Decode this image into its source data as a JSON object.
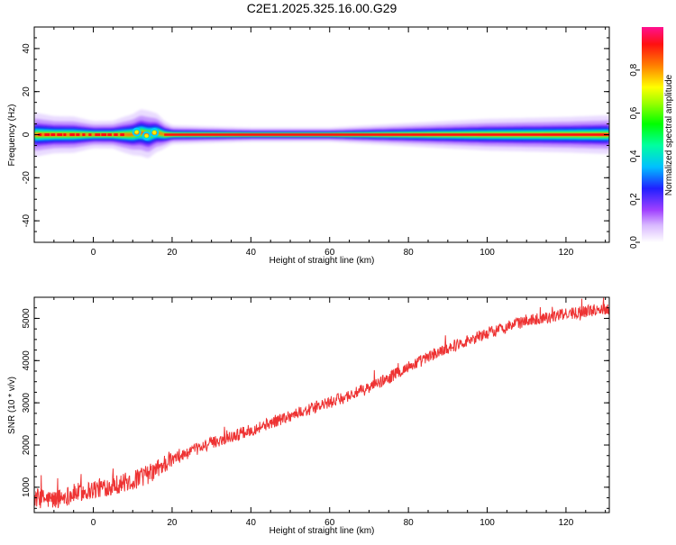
{
  "title": "C2E1.2025.325.16.00.G29",
  "chart_data": [
    {
      "type": "heatmap",
      "xlabel": "Height of straight line (km)",
      "ylabel": "Frequency (Hz)",
      "xlim": [
        -15,
        131
      ],
      "ylim": [
        -50,
        50
      ],
      "x_ticks": [
        0,
        20,
        40,
        60,
        80,
        100,
        120
      ],
      "y_ticks": [
        -40,
        -20,
        0,
        20,
        40
      ],
      "colorbar": {
        "label": "Normalized spectral amplitude",
        "range": [
          0.0,
          1.0
        ],
        "ticks": [
          0.0,
          0.2,
          0.4,
          0.6,
          0.8
        ]
      },
      "ridge": {
        "x": [
          -15,
          -10,
          -5,
          0,
          5,
          10,
          12,
          14,
          16,
          18,
          20,
          40,
          60,
          80,
          100,
          120,
          131
        ],
        "center_hz": [
          0,
          0,
          0,
          0,
          0,
          0,
          1,
          0,
          1,
          0,
          0,
          0,
          0,
          0,
          0,
          0,
          0
        ],
        "spread_hz": [
          5,
          4,
          4,
          3,
          3,
          5,
          6,
          6,
          5,
          3,
          2,
          1.5,
          1.5,
          2.5,
          3.5,
          4,
          4.5
        ],
        "peak_amplitude": [
          0.85,
          0.95,
          0.9,
          0.9,
          0.95,
          0.7,
          0.6,
          0.65,
          0.6,
          0.95,
          1.0,
          1.0,
          0.98,
          0.95,
          0.9,
          0.85,
          0.8
        ]
      },
      "grid": false
    },
    {
      "type": "line",
      "xlabel": "Height of straight line (km)",
      "ylabel": "SNR (10 * v/v)",
      "xlim": [
        -15,
        131
      ],
      "ylim": [
        400,
        5500
      ],
      "x_ticks": [
        0,
        20,
        40,
        60,
        80,
        100,
        120
      ],
      "y_ticks": [
        1000,
        2000,
        3000,
        4000,
        5000
      ],
      "color": "#ee3333",
      "trend": {
        "x": [
          -15,
          -10,
          -5,
          0,
          5,
          10,
          15,
          18,
          20,
          30,
          40,
          50,
          60,
          70,
          80,
          90,
          100,
          110,
          120,
          131
        ],
        "y": [
          750,
          700,
          850,
          950,
          1050,
          1150,
          1350,
          1550,
          1650,
          2050,
          2350,
          2700,
          3000,
          3350,
          3850,
          4300,
          4650,
          4950,
          5100,
          5250
        ]
      },
      "noise_amplitude": 180,
      "grid": false
    }
  ]
}
